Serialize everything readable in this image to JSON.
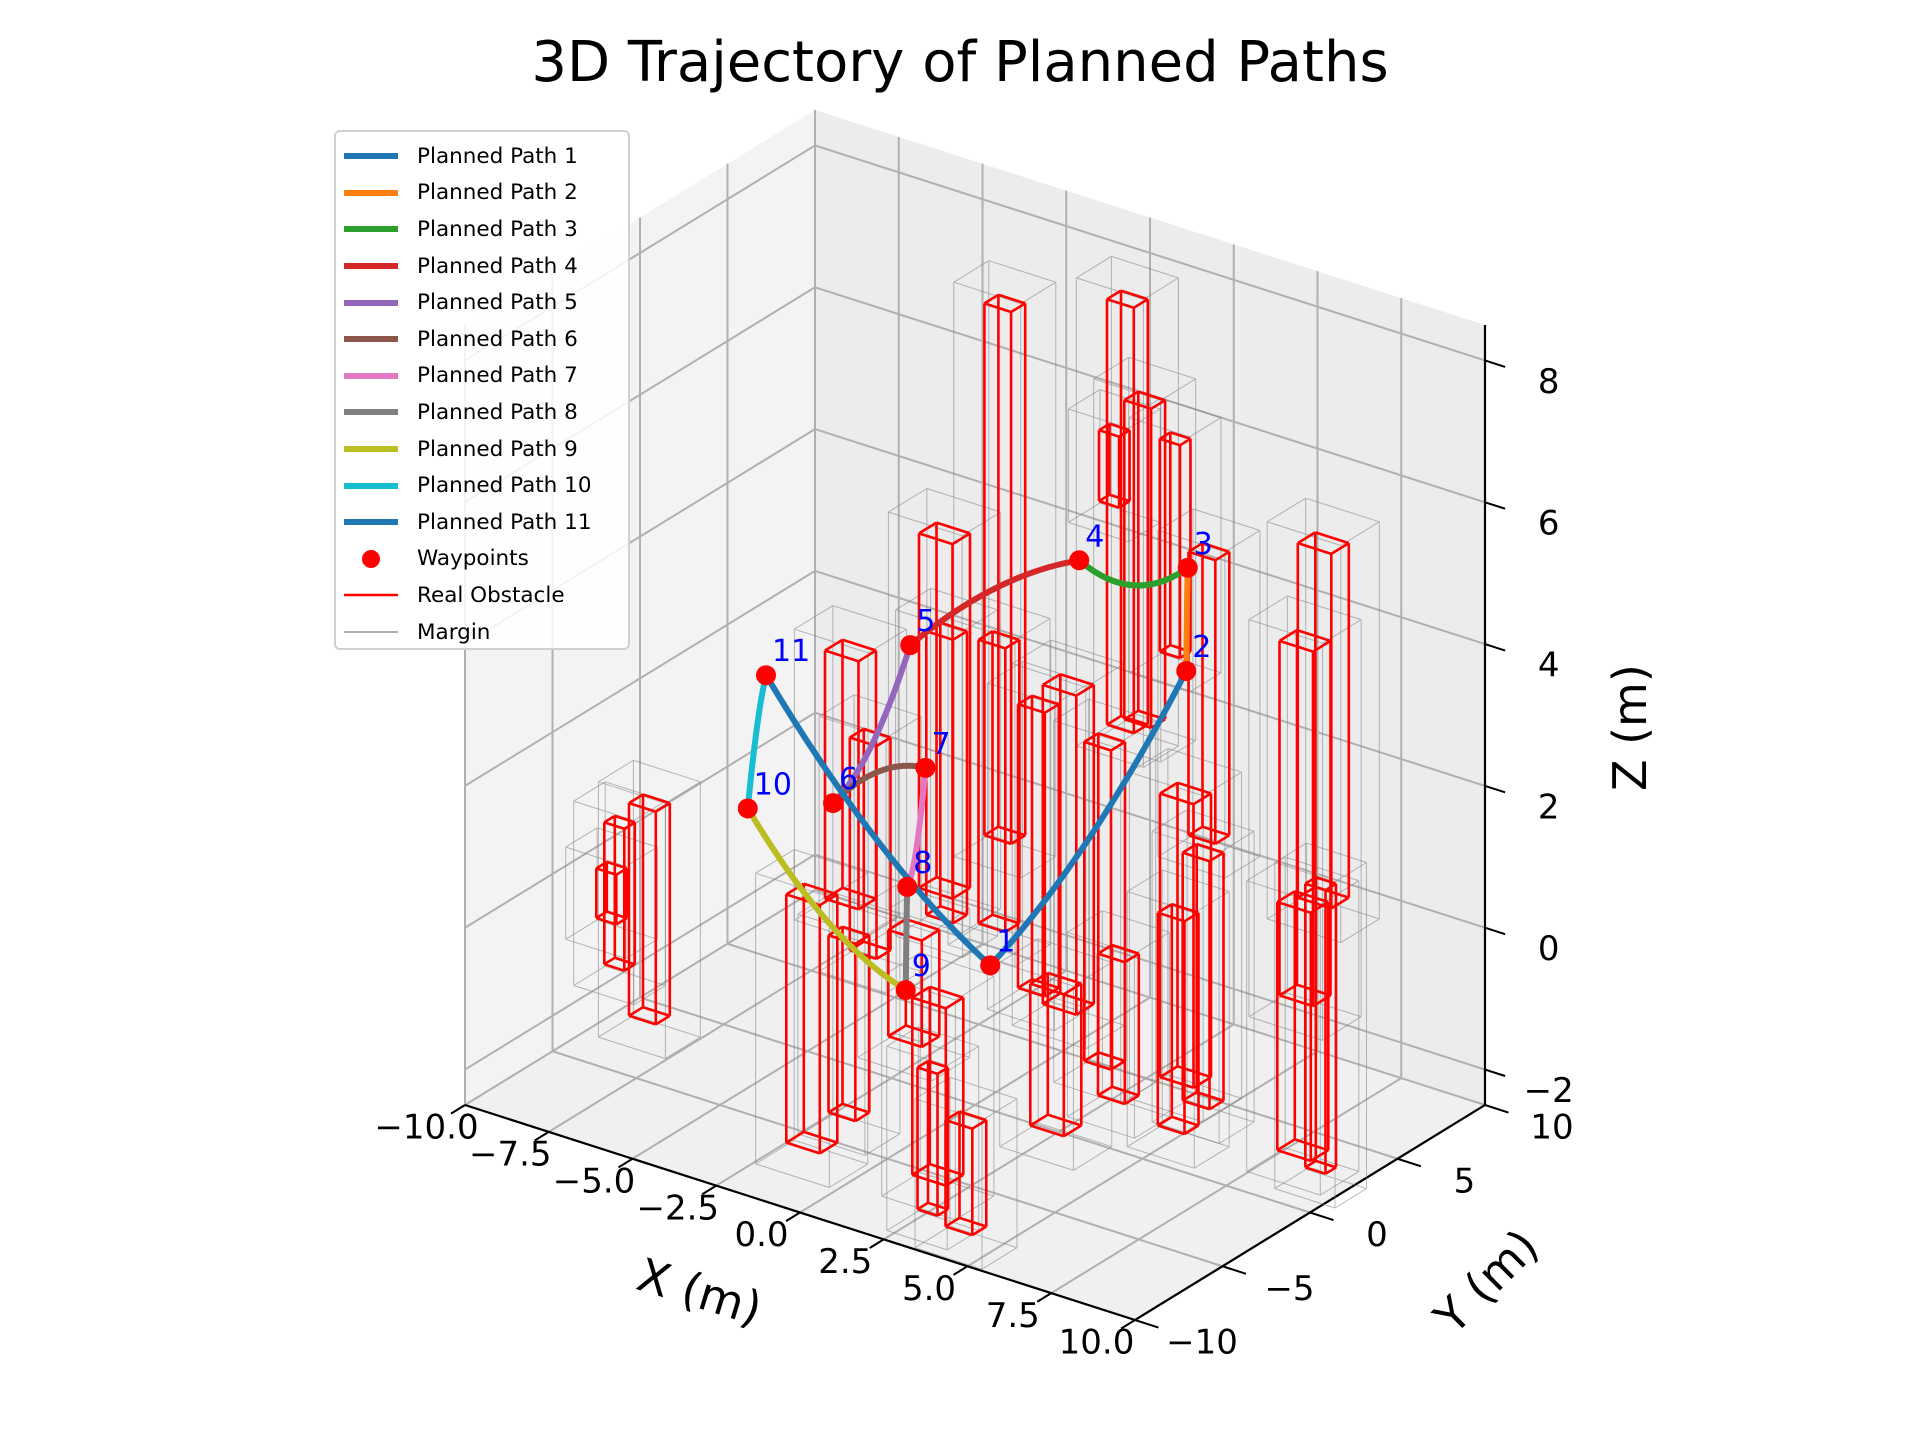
{
  "chart_data": {
    "type": "line",
    "title": "3D Trajectory of Planned Paths",
    "xlabel": "X (m)",
    "ylabel": "Y (m)",
    "zlabel": "Z (m)",
    "xlim": [
      -10,
      10
    ],
    "ylim": [
      -10,
      10
    ],
    "zlim": [
      -2.5,
      8.5
    ],
    "grid": true,
    "legend_position": "top-left",
    "x_ticks": [
      "−10.0",
      "−7.5",
      "−5.0",
      "−2.5",
      "0.0",
      "2.5",
      "5.0",
      "7.5",
      "10.0"
    ],
    "y_ticks": [
      "−10",
      "−5",
      "0",
      "5",
      "10"
    ],
    "z_ticks": [
      "−2",
      "0",
      "2",
      "4",
      "6",
      "8"
    ],
    "waypoints": [
      {
        "label": "1",
        "x": 1.5,
        "y": -2.0,
        "z": 0.0
      },
      {
        "label": "2",
        "x": 5.0,
        "y": 2.5,
        "z": 4.0
      },
      {
        "label": "3",
        "x": 4.0,
        "y": 4.5,
        "z": 5.0
      },
      {
        "label": "4",
        "x": 0.5,
        "y": 5.0,
        "z": 4.5
      },
      {
        "label": "5",
        "x": -3.5,
        "y": 3.0,
        "z": 3.0
      },
      {
        "label": "6",
        "x": -4.5,
        "y": 0.5,
        "z": 1.0
      },
      {
        "label": "7",
        "x": -2.0,
        "y": 1.0,
        "z": 1.8
      },
      {
        "label": "8",
        "x": -1.5,
        "y": -1.0,
        "z": 0.5
      },
      {
        "label": "9",
        "x": -0.5,
        "y": -3.0,
        "z": -0.5
      },
      {
        "label": "10",
        "x": -6.0,
        "y": -1.5,
        "z": 1.0
      },
      {
        "label": "11",
        "x": -6.5,
        "y": 0.5,
        "z": 2.5
      }
    ],
    "series": [
      {
        "name": "Planned Path 1",
        "color": "#1f77b4"
      },
      {
        "name": "Planned Path 2",
        "color": "#ff7f0e"
      },
      {
        "name": "Planned Path 3",
        "color": "#2ca02c"
      },
      {
        "name": "Planned Path 4",
        "color": "#d62728"
      },
      {
        "name": "Planned Path 5",
        "color": "#9467bd"
      },
      {
        "name": "Planned Path 6",
        "color": "#8c564b"
      },
      {
        "name": "Planned Path 7",
        "color": "#e377c2"
      },
      {
        "name": "Planned Path 8",
        "color": "#7f7f7f"
      },
      {
        "name": "Planned Path 9",
        "color": "#bcbd22"
      },
      {
        "name": "Planned Path 10",
        "color": "#17becf"
      },
      {
        "name": "Planned Path 11",
        "color": "#1f77b4"
      }
    ],
    "legend": [
      {
        "label": "Planned Path 1",
        "kind": "line",
        "color": "#1f77b4"
      },
      {
        "label": "Planned Path 2",
        "kind": "line",
        "color": "#ff7f0e"
      },
      {
        "label": "Planned Path 3",
        "kind": "line",
        "color": "#2ca02c"
      },
      {
        "label": "Planned Path 4",
        "kind": "line",
        "color": "#d62728"
      },
      {
        "label": "Planned Path 5",
        "kind": "line",
        "color": "#9467bd"
      },
      {
        "label": "Planned Path 6",
        "kind": "line",
        "color": "#8c564b"
      },
      {
        "label": "Planned Path 7",
        "kind": "line",
        "color": "#e377c2"
      },
      {
        "label": "Planned Path 8",
        "kind": "line",
        "color": "#7f7f7f"
      },
      {
        "label": "Planned Path 9",
        "kind": "line",
        "color": "#bcbd22"
      },
      {
        "label": "Planned Path 10",
        "kind": "line",
        "color": "#17becf"
      },
      {
        "label": "Planned Path 11",
        "kind": "line",
        "color": "#1f77b4"
      },
      {
        "label": "Waypoints",
        "kind": "marker",
        "color": "#ff0000"
      },
      {
        "label": "Real Obstacle",
        "kind": "thin-line",
        "color": "#ff0000"
      },
      {
        "label": "Margin",
        "kind": "hairline",
        "color": "#808080"
      }
    ],
    "obstacles": [
      {
        "x": [
          -3.9,
          -3.1
        ],
        "y": [
          8.0,
          8.8
        ],
        "z": [
          -0.5,
          7.0
        ]
      },
      {
        "x": [
          -0.5,
          0.3
        ],
        "y": [
          8.5,
          9.3
        ],
        "z": [
          1.5,
          7.5
        ]
      },
      {
        "x": [
          -1.0,
          -0.4
        ],
        "y": [
          9.0,
          9.6
        ],
        "z": [
          4.5,
          5.5
        ]
      },
      {
        "x": [
          0.8,
          1.6
        ],
        "y": [
          7.0,
          7.8
        ],
        "z": [
          2.0,
          6.5
        ]
      },
      {
        "x": [
          1.6,
          2.2
        ],
        "y": [
          7.5,
          8.1
        ],
        "z": [
          3.0,
          6.0
        ]
      },
      {
        "x": [
          3.5,
          4.3
        ],
        "y": [
          5.5,
          6.3
        ],
        "z": [
          1.0,
          5.0
        ]
      },
      {
        "x": [
          6.5,
          7.5
        ],
        "y": [
          6.0,
          7.0
        ],
        "z": [
          0.5,
          5.5
        ]
      },
      {
        "x": [
          7.0,
          8.0
        ],
        "y": [
          4.0,
          5.0
        ],
        "z": [
          -0.5,
          4.5
        ]
      },
      {
        "x": [
          -3.5,
          -2.5
        ],
        "y": [
          3.5,
          4.5
        ],
        "z": [
          -0.5,
          4.5
        ]
      },
      {
        "x": [
          -2.5,
          -1.7
        ],
        "y": [
          2.0,
          2.8
        ],
        "z": [
          -0.5,
          3.5
        ]
      },
      {
        "x": [
          -1.2,
          -0.4
        ],
        "y": [
          2.5,
          3.3
        ],
        "z": [
          -0.5,
          3.5
        ]
      },
      {
        "x": [
          0.5,
          1.3
        ],
        "y": [
          1.5,
          2.3
        ],
        "z": [
          -1.0,
          3.0
        ]
      },
      {
        "x": [
          1.5,
          2.5
        ],
        "y": [
          1.0,
          2.0
        ],
        "z": [
          -1.0,
          3.5
        ]
      },
      {
        "x": [
          3.0,
          3.8
        ],
        "y": [
          0.5,
          1.3
        ],
        "z": [
          -1.5,
          3.0
        ]
      },
      {
        "x": [
          5.0,
          6.0
        ],
        "y": [
          1.0,
          2.0
        ],
        "z": [
          -1.5,
          2.5
        ]
      },
      {
        "x": [
          6.2,
          7.0
        ],
        "y": [
          0.0,
          0.8
        ],
        "z": [
          -1.5,
          2.0
        ]
      },
      {
        "x": [
          8.5,
          9.5
        ],
        "y": [
          1.0,
          2.0
        ],
        "z": [
          -2.0,
          1.5
        ]
      },
      {
        "x": [
          9.6,
          10.2
        ],
        "y": [
          0.5,
          1.1
        ],
        "z": [
          -2.0,
          2.0
        ]
      },
      {
        "x": [
          -8.5,
          -7.7
        ],
        "y": [
          -3.5,
          -2.7
        ],
        "z": [
          -2.0,
          1.0
        ]
      },
      {
        "x": [
          -9.5,
          -8.9
        ],
        "y": [
          -3.0,
          -2.4
        ],
        "z": [
          -1.5,
          0.5
        ]
      },
      {
        "x": [
          -10.0,
          -9.4
        ],
        "y": [
          -2.5,
          -1.9
        ],
        "z": [
          -1.0,
          -0.3
        ]
      },
      {
        "x": [
          -2.5,
          -1.5
        ],
        "y": [
          -6.0,
          -5.0
        ],
        "z": [
          -2.5,
          1.0
        ]
      },
      {
        "x": [
          -1.5,
          -0.7
        ],
        "y": [
          -5.5,
          -4.7
        ],
        "z": [
          -2.0,
          0.5
        ]
      },
      {
        "x": [
          -0.5,
          0.5
        ],
        "y": [
          -4.0,
          -3.0
        ],
        "z": [
          -1.0,
          0.5
        ]
      },
      {
        "x": [
          1.0,
          2.0
        ],
        "y": [
          -5.5,
          -4.5
        ],
        "z": [
          -2.5,
          0.0
        ]
      },
      {
        "x": [
          2.2,
          2.8
        ],
        "y": [
          -7.5,
          -6.9
        ],
        "z": [
          -2.5,
          -0.5
        ]
      },
      {
        "x": [
          3.3,
          4.1
        ],
        "y": [
          -8.0,
          -7.2
        ],
        "z": [
          -2.5,
          -1.0
        ]
      },
      {
        "x": [
          4.0,
          5.0
        ],
        "y": [
          -4.5,
          -3.5
        ],
        "z": [
          -1.5,
          0.5
        ]
      },
      {
        "x": [
          5.5,
          6.3
        ],
        "y": [
          -3.5,
          -2.7
        ],
        "z": [
          -1.0,
          1.0
        ]
      },
      {
        "x": [
          6.5,
          7.3
        ],
        "y": [
          -2.0,
          -1.2
        ],
        "z": [
          -1.5,
          1.5
        ]
      },
      {
        "x": [
          -5.0,
          -4.0
        ],
        "y": [
          1.0,
          2.0
        ],
        "z": [
          -0.5,
          3.0
        ]
      },
      {
        "x": [
          -4.0,
          -3.2
        ],
        "y": [
          0.5,
          1.3
        ],
        "z": [
          -1.0,
          2.0
        ]
      }
    ]
  }
}
